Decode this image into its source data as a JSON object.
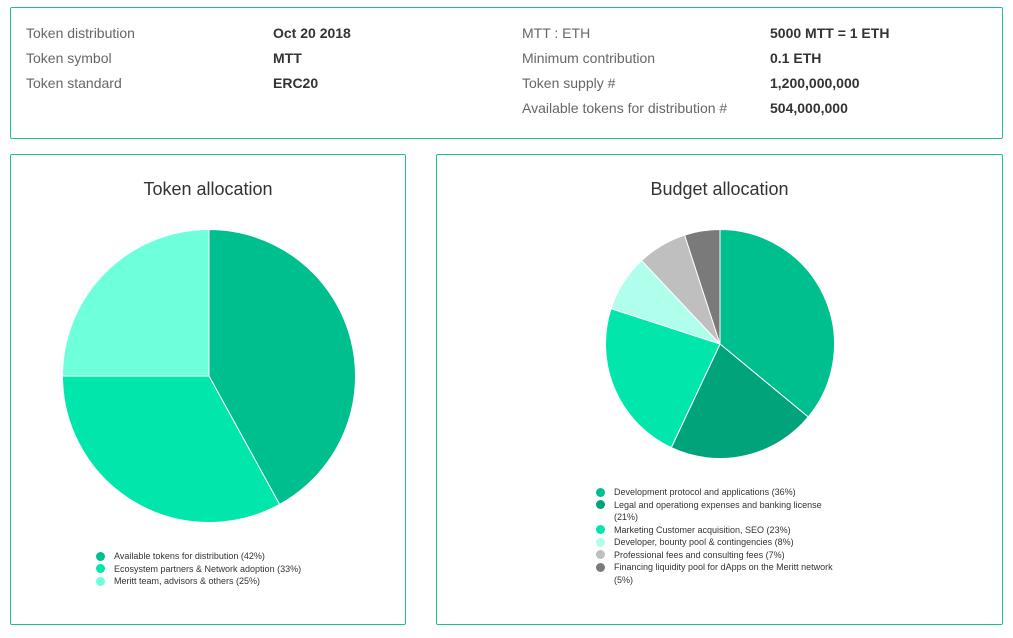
{
  "info": {
    "left": [
      {
        "label": "Token distribution",
        "value": "Oct 20 2018"
      },
      {
        "label": "Token symbol",
        "value": "MTT"
      },
      {
        "label": "Token standard",
        "value": "ERC20"
      }
    ],
    "right": [
      {
        "label": "MTT : ETH",
        "value": "5000 MTT = 1 ETH"
      },
      {
        "label": "Minimum contribution",
        "value": "0.1 ETH"
      },
      {
        "label": "Token supply #",
        "value": "1,200,000,000"
      },
      {
        "label": "Available tokens for distribution #",
        "value": "504,000,000"
      }
    ]
  },
  "chart_data": [
    {
      "type": "pie",
      "title": "Token allocation",
      "legend_position": "bottom",
      "slices": [
        {
          "label": "Available tokens for distribution (42%)",
          "value": 42,
          "color": "#00bf8e"
        },
        {
          "label": "Ecosystem partners & Network adoption (33%)",
          "value": 33,
          "color": "#00e6ab"
        },
        {
          "label": "Meritt team, advisors & others (25%)",
          "value": 25,
          "color": "#6effdb"
        }
      ]
    },
    {
      "type": "pie",
      "title": "Budget allocation",
      "legend_position": "bottom",
      "slices": [
        {
          "label": "Development protocol and applications (36%)",
          "value": 36,
          "color": "#00bf8e"
        },
        {
          "label": "Legal and operationg expenses and banking license (21%)",
          "value": 21,
          "color": "#00a37a"
        },
        {
          "label": "Marketing Customer acquisition, SEO (23%)",
          "value": 23,
          "color": "#00e6ab"
        },
        {
          "label": "Developer, bounty pool & contingencies (8%)",
          "value": 8,
          "color": "#b0ffec"
        },
        {
          "label": "Professional fees and consulting fees (7%)",
          "value": 7,
          "color": "#bfbfbf"
        },
        {
          "label": "Financing liquidity pool for dApps on the Meritt network (5%)",
          "value": 5,
          "color": "#7a7a7a"
        }
      ]
    }
  ]
}
